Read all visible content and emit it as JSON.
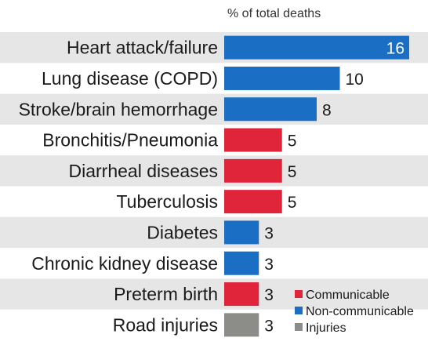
{
  "chart_data": {
    "type": "bar",
    "orientation": "horizontal",
    "title": "",
    "xlabel": "% of total deaths",
    "ylabel": "",
    "xlim": [
      0,
      16.5
    ],
    "grid": false,
    "legend_position": "bottom-right",
    "categories": [
      "Heart attack/failure",
      "Lung disease (COPD)",
      "Stroke/brain hemorrhage",
      "Bronchitis/Pneumonia",
      "Diarrheal diseases",
      "Tuberculosis",
      "Diabetes",
      "Chronic kidney disease",
      "Preterm birth",
      "Road injuries"
    ],
    "values": [
      16,
      10,
      8,
      5,
      5,
      5,
      3,
      3,
      3,
      3
    ],
    "value_labels": [
      "16",
      "10",
      "8",
      "5",
      "5",
      "5",
      "3",
      "3",
      "3",
      "3"
    ],
    "groups": [
      "Non-communicable",
      "Non-communicable",
      "Non-communicable",
      "Communicable",
      "Communicable",
      "Communicable",
      "Non-communicable",
      "Non-communicable",
      "Communicable",
      "Injuries"
    ],
    "legend": [
      {
        "name": "Communicable",
        "color": "#e0243a"
      },
      {
        "name": "Non-communicable",
        "color": "#1a6ec4"
      },
      {
        "name": "Injuries",
        "color": "#8c8c88"
      }
    ],
    "row_band_color": "#e6e6e6"
  }
}
